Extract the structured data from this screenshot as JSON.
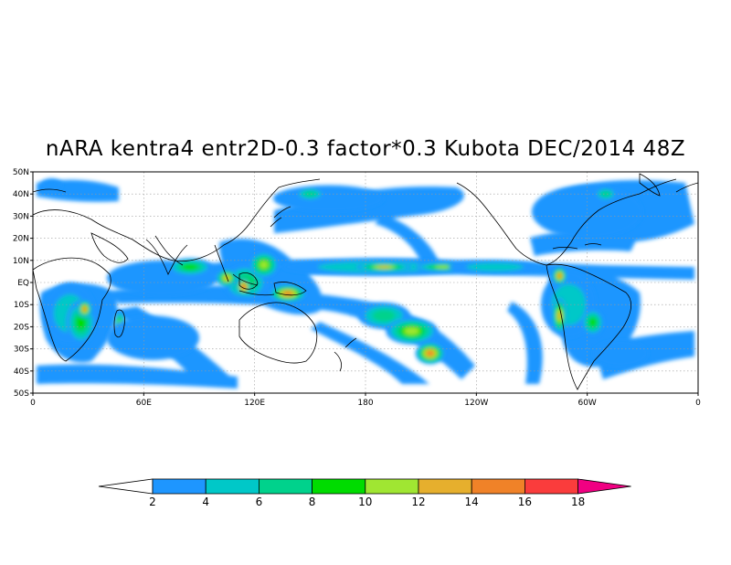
{
  "title": "nARA kentra4 entr2D-0.3 factor*0.3  Kubota DEC/2014 48Z",
  "map": {
    "projection": "cylindrical equidistant",
    "lon_range": [
      0,
      360
    ],
    "lat_range": [
      -50,
      50
    ],
    "lat_tick_labels": [
      "50N",
      "40N",
      "30N",
      "20N",
      "10N",
      "EQ",
      "10S",
      "20S",
      "30S",
      "40S",
      "50S"
    ],
    "lon_tick_labels": [
      "0",
      "60E",
      "120E",
      "180",
      "120W",
      "60W",
      "0"
    ],
    "gridlines": "dotted"
  },
  "colorbar": {
    "labels": [
      "2",
      "4",
      "6",
      "8",
      "10",
      "12",
      "14",
      "16",
      "18"
    ],
    "colors": [
      "#ffffff",
      "#1e96ff",
      "#00c8c8",
      "#00d28c",
      "#00dc00",
      "#a0e632",
      "#e6af2d",
      "#f08228",
      "#fa3c3c",
      "#f00082"
    ]
  },
  "precip_regions": [
    {
      "lon": 10,
      "lat": 44,
      "rx": 6,
      "ry": 3,
      "level": 1
    },
    {
      "lon": 20,
      "lat": -14,
      "rx": 14,
      "ry": 14,
      "level": 2
    },
    {
      "lon": 26,
      "lat": -18,
      "rx": 8,
      "ry": 10,
      "level": 4
    },
    {
      "lon": 28,
      "lat": -12,
      "rx": 4,
      "ry": 4,
      "level": 7
    },
    {
      "lon": 47,
      "lat": -19,
      "rx": 3,
      "ry": 6,
      "level": 5
    },
    {
      "lon": 70,
      "lat": 2,
      "rx": 30,
      "ry": 8,
      "level": 1
    },
    {
      "lon": 85,
      "lat": 7,
      "rx": 12,
      "ry": 4,
      "level": 4
    },
    {
      "lon": 65,
      "lat": -25,
      "rx": 25,
      "ry": 10,
      "level": 1
    },
    {
      "lon": 115,
      "lat": 0,
      "rx": 12,
      "ry": 8,
      "level": 4
    },
    {
      "lon": 114,
      "lat": -2,
      "rx": 4,
      "ry": 4,
      "level": 8
    },
    {
      "lon": 105,
      "lat": 2,
      "rx": 6,
      "ry": 4,
      "level": 6
    },
    {
      "lon": 125,
      "lat": 8,
      "rx": 8,
      "ry": 6,
      "level": 5
    },
    {
      "lon": 138,
      "lat": -5,
      "rx": 10,
      "ry": 4,
      "level": 7
    },
    {
      "lon": 160,
      "lat": 38,
      "rx": 30,
      "ry": 6,
      "level": 1
    },
    {
      "lon": 150,
      "lat": 40,
      "rx": 8,
      "ry": 3,
      "level": 3
    },
    {
      "lon": 185,
      "lat": 7,
      "rx": 50,
      "ry": 4,
      "level": 2
    },
    {
      "lon": 190,
      "lat": 7,
      "rx": 15,
      "ry": 2,
      "level": 6
    },
    {
      "lon": 222,
      "lat": 7,
      "rx": 15,
      "ry": 2,
      "level": 5
    },
    {
      "lon": 250,
      "lat": 7,
      "rx": 25,
      "ry": 3,
      "level": 2
    },
    {
      "lon": 190,
      "lat": -15,
      "rx": 14,
      "ry": 6,
      "level": 3
    },
    {
      "lon": 205,
      "lat": -22,
      "rx": 14,
      "ry": 6,
      "level": 5
    },
    {
      "lon": 215,
      "lat": -32,
      "rx": 8,
      "ry": 5,
      "level": 7
    },
    {
      "lon": 290,
      "lat": -10,
      "rx": 15,
      "ry": 15,
      "level": 2
    },
    {
      "lon": 285,
      "lat": -15,
      "rx": 4,
      "ry": 8,
      "level": 6
    },
    {
      "lon": 303,
      "lat": -18,
      "rx": 6,
      "ry": 6,
      "level": 4
    },
    {
      "lon": 285,
      "lat": 3,
      "rx": 4,
      "ry": 4,
      "level": 7
    },
    {
      "lon": 318,
      "lat": -32,
      "rx": 15,
      "ry": 6,
      "level": 1
    },
    {
      "lon": 300,
      "lat": 32,
      "rx": 30,
      "ry": 12,
      "level": 1
    },
    {
      "lon": 310,
      "lat": 40,
      "rx": 6,
      "ry": 3,
      "level": 3
    }
  ]
}
